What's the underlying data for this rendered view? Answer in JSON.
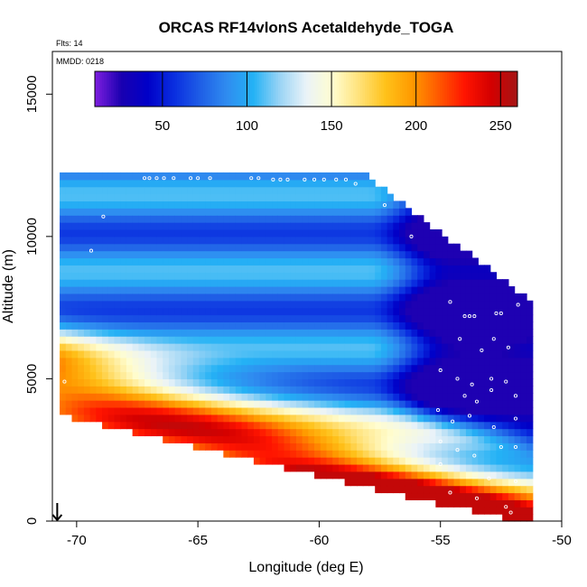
{
  "chart_data": {
    "type": "heatmap",
    "title": "ORCAS RF14vlonS Acetaldehyde_TOGA",
    "annotations": {
      "flights": "Flts: 14",
      "date": "MMDD: 0218"
    },
    "xlabel": "Longitude (deg E)",
    "ylabel": "Altitude (m)",
    "xlim": [
      -71,
      -50
    ],
    "ylim": [
      0,
      16500
    ],
    "x_ticks": [
      -70,
      -65,
      -60,
      -55,
      -50
    ],
    "y_ticks": [
      0,
      5000,
      10000,
      15000
    ],
    "x_tick_labels": [
      "-70",
      "-65",
      "-60",
      "-55",
      "-50"
    ],
    "y_tick_labels": [
      "0",
      "5000",
      "10000",
      "15000"
    ],
    "colorbar": {
      "range": [
        10,
        260
      ],
      "ticks": [
        50,
        100,
        150,
        200,
        250
      ],
      "tick_labels": [
        "50",
        "100",
        "150",
        "200",
        "250"
      ],
      "colors": [
        "#7f1fe0",
        "#1a00b0",
        "#0000c8",
        "#0a2ee0",
        "#1f5fe6",
        "#2f8cf0",
        "#24b2f5",
        "#9ad4f5",
        "#eaf3f8",
        "#fffdd0",
        "#ffe27a",
        "#ffc21a",
        "#ff9a00",
        "#ff5a00",
        "#ff1400",
        "#d40000",
        "#a51616"
      ]
    },
    "grid": {
      "lon_start": -70.7,
      "lon_end": -51.4,
      "lon_step": 0.25,
      "alt_step": 250,
      "top_start_alt": 12200,
      "top_knee_lon": -58.5,
      "top_end_alt": 7600,
      "bottom_start_alt": 3800,
      "bottom_end_alt": 0
    },
    "features": {
      "warm_band_ridge": {
        "lon": -70.7,
        "alt_at_start": 4700,
        "slope_per_deg": -280
      },
      "low_alt_max_value": 250,
      "mid_troposphere_min_value": 25
    },
    "observations": [
      [
        -70.5,
        4900
      ],
      [
        -68.9,
        10700
      ],
      [
        -69.4,
        9500
      ],
      [
        -67.2,
        12050
      ],
      [
        -67.0,
        12050
      ],
      [
        -66.7,
        12050
      ],
      [
        -66.4,
        12050
      ],
      [
        -66.0,
        12050
      ],
      [
        -65.3,
        12050
      ],
      [
        -65.0,
        12050
      ],
      [
        -64.5,
        12050
      ],
      [
        -62.8,
        12050
      ],
      [
        -62.5,
        12050
      ],
      [
        -61.9,
        12000
      ],
      [
        -61.6,
        12000
      ],
      [
        -61.3,
        12000
      ],
      [
        -60.6,
        12000
      ],
      [
        -60.2,
        12000
      ],
      [
        -59.8,
        12000
      ],
      [
        -59.3,
        12000
      ],
      [
        -58.9,
        12000
      ],
      [
        -58.5,
        11850
      ],
      [
        -57.3,
        11100
      ],
      [
        -56.2,
        10000
      ],
      [
        -54.6,
        7700
      ],
      [
        -54.0,
        7200
      ],
      [
        -53.8,
        7200
      ],
      [
        -53.6,
        7200
      ],
      [
        -52.7,
        7300
      ],
      [
        -52.5,
        7300
      ],
      [
        -51.8,
        7600
      ],
      [
        -54.2,
        6400
      ],
      [
        -53.3,
        6000
      ],
      [
        -52.8,
        6400
      ],
      [
        -52.2,
        6100
      ],
      [
        -55.0,
        5300
      ],
      [
        -54.3,
        5000
      ],
      [
        -53.7,
        4800
      ],
      [
        -52.9,
        5000
      ],
      [
        -52.3,
        4900
      ],
      [
        -54.0,
        4400
      ],
      [
        -53.5,
        4200
      ],
      [
        -52.9,
        4600
      ],
      [
        -51.9,
        4400
      ],
      [
        -55.1,
        3900
      ],
      [
        -54.5,
        3500
      ],
      [
        -53.8,
        3700
      ],
      [
        -52.8,
        3300
      ],
      [
        -51.9,
        3600
      ],
      [
        -55.0,
        2800
      ],
      [
        -54.3,
        2500
      ],
      [
        -53.6,
        2300
      ],
      [
        -52.5,
        2600
      ],
      [
        -51.9,
        2600
      ],
      [
        -55.0,
        2000
      ],
      [
        -53.0,
        1500
      ],
      [
        -51.9,
        1400
      ],
      [
        -54.6,
        1000
      ],
      [
        -53.5,
        800
      ],
      [
        -52.3,
        500
      ],
      [
        -55.0,
        200
      ],
      [
        -52.1,
        300
      ]
    ],
    "start_marker": {
      "lon": -70.8,
      "alt": 0,
      "type": "arrow-down"
    }
  }
}
